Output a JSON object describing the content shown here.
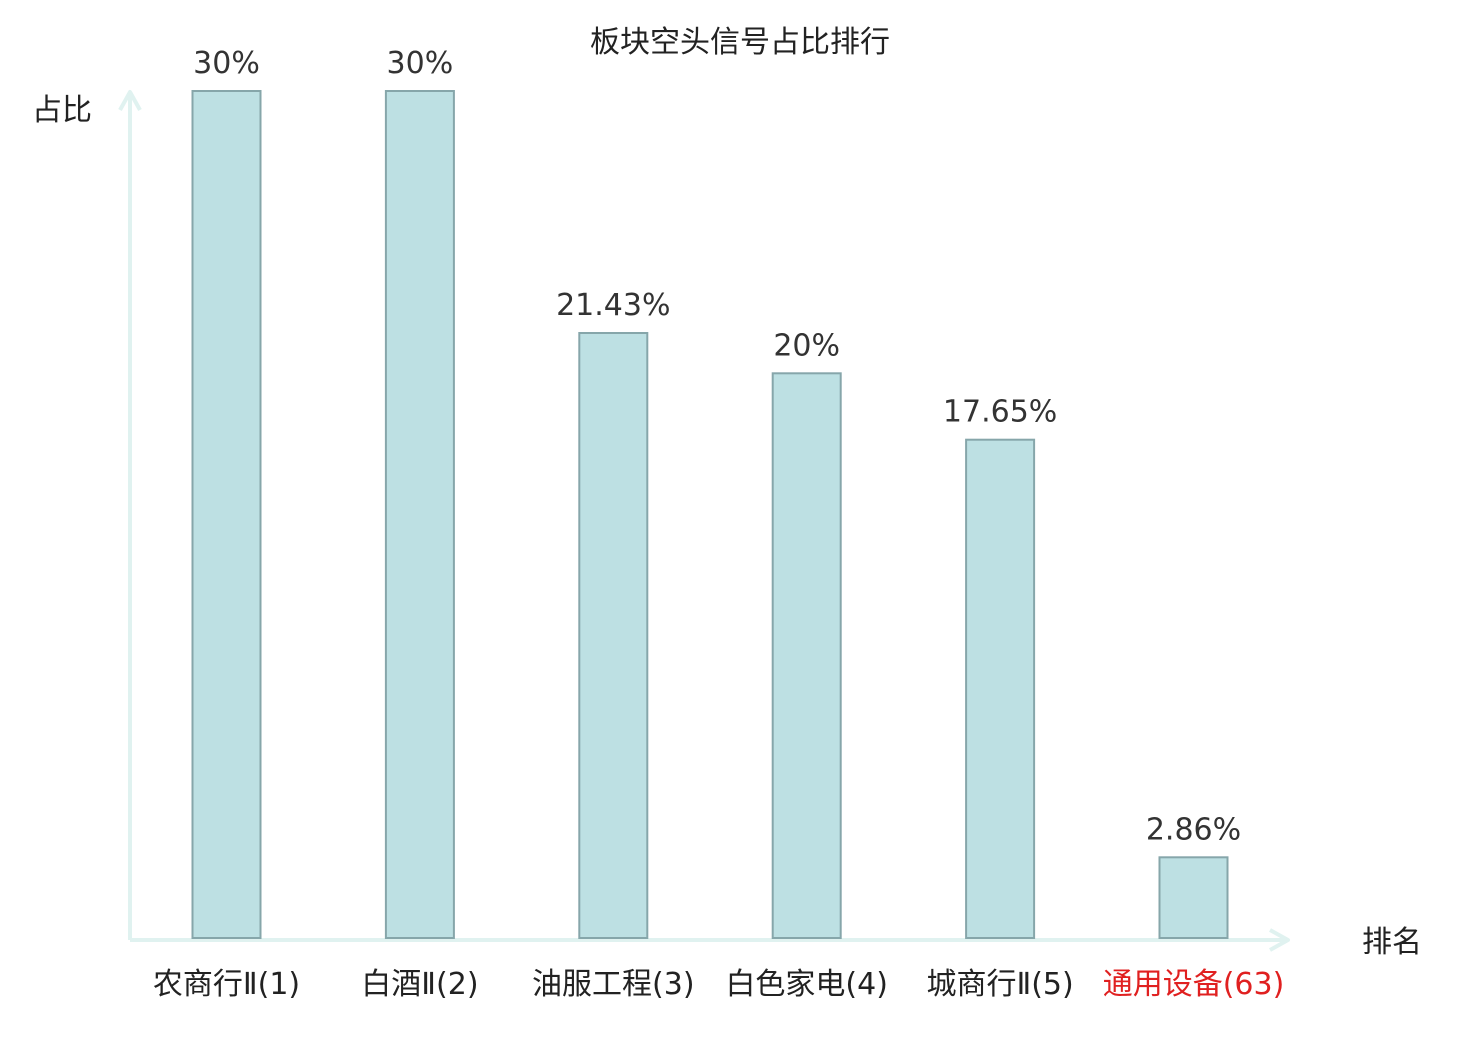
{
  "chart_data": {
    "type": "bar",
    "title": "板块空头信号占比排行",
    "ylabel": "占比",
    "xlabel": "排名",
    "categories": [
      "农商行Ⅱ(1)",
      "白酒Ⅱ(2)",
      "油服工程(3)",
      "白色家电(4)",
      "城商行Ⅱ(5)",
      "通用设备(63)"
    ],
    "values": [
      30,
      30,
      21.43,
      20,
      17.65,
      2.86
    ],
    "value_labels": [
      "30%",
      "30%",
      "21.43%",
      "20%",
      "17.65%",
      "2.86%"
    ],
    "highlight_index": 5,
    "ylim": [
      0,
      30
    ],
    "grid": false,
    "legend": "none",
    "colors": {
      "bar_fill": "#bde0e3",
      "bar_stroke": "#86a6aa",
      "axis": "#e0f2f0",
      "highlight_label": "#e02020",
      "normal_label": "#222222"
    }
  }
}
